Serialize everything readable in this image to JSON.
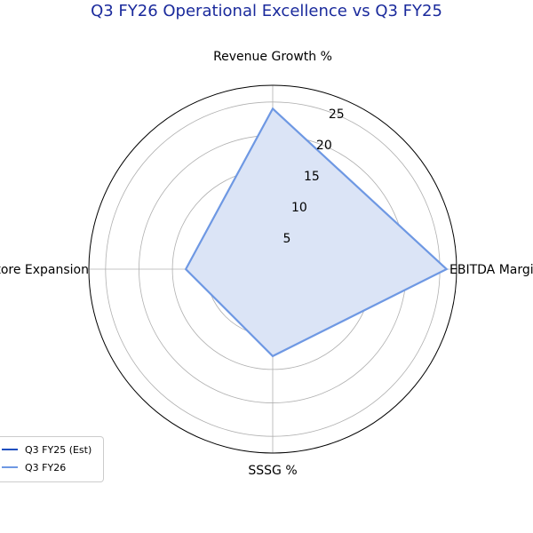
{
  "chart_data": {
    "type": "radar",
    "title": "Q3 FY26 Operational Excellence vs Q3 FY25",
    "axes": [
      "Revenue Growth %",
      "EBITDA Margin",
      "SSSG %",
      "Store Expansion"
    ],
    "rmax": 27.5,
    "rticks": [
      5,
      10,
      15,
      20,
      25
    ],
    "grid": true,
    "legend_position": "lower-left",
    "series": [
      {
        "name": "Q3 FY25 (Est)",
        "values": [
          0,
          1.5,
          0,
          11
        ],
        "color": "#1f4fbf",
        "fill": false
      },
      {
        "name": "Q3 FY26",
        "values": [
          24,
          26,
          13,
          13
        ],
        "color": "#6e98e3",
        "fill": true,
        "fill_color": "#dbe4f6"
      }
    ]
  }
}
